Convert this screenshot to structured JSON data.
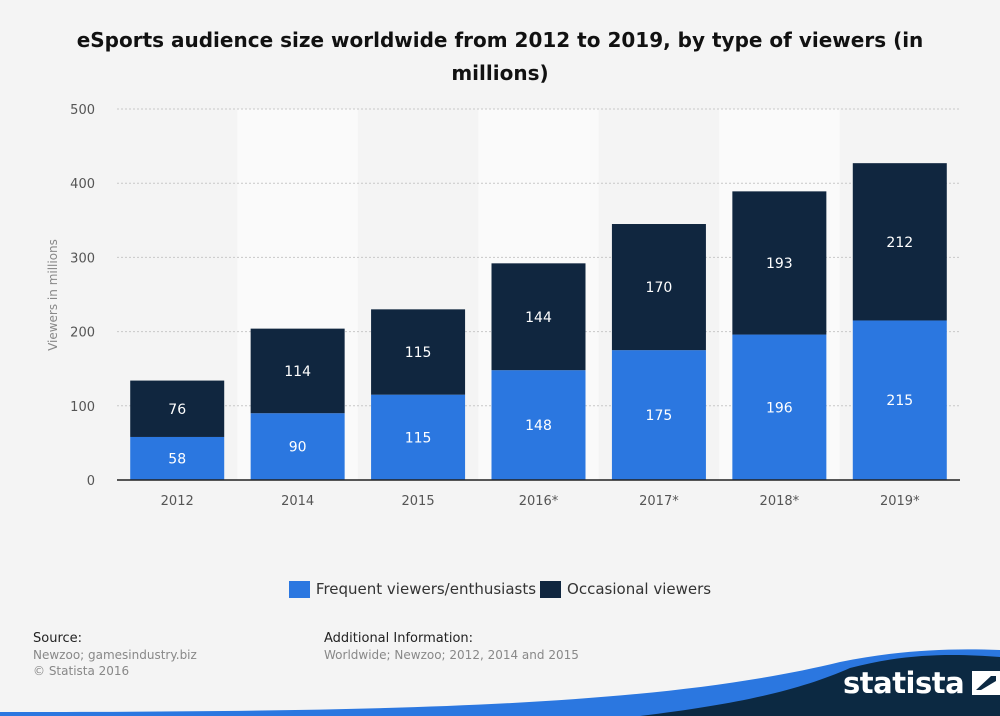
{
  "chart_data": {
    "type": "bar",
    "stacked": true,
    "title": "eSports audience size worldwide from 2012 to 2019, by type of viewers (in millions)",
    "ylabel": "Viewers in millions",
    "xlabel": "",
    "ylim": [
      0,
      500
    ],
    "yticks": [
      0,
      100,
      200,
      300,
      400,
      500
    ],
    "grid": true,
    "legend_position": "bottom",
    "categories": [
      "2012",
      "2014",
      "2015",
      "2016*",
      "2017*",
      "2018*",
      "2019*"
    ],
    "series": [
      {
        "name": "Frequent viewers/enthusiasts",
        "color": "#2b77e0",
        "values": [
          58,
          90,
          115,
          148,
          175,
          196,
          215
        ]
      },
      {
        "name": "Occasional viewers",
        "color": "#10263f",
        "values": [
          76,
          114,
          115,
          144,
          170,
          193,
          212
        ]
      }
    ]
  },
  "footer": {
    "source_heading": "Source:",
    "source_lines": [
      "Newzoo; gamesindustry.biz",
      "© Statista 2016"
    ],
    "info_heading": "Additional Information:",
    "info_text": "Worldwide; Newzoo; 2012, 2014 and 2015"
  },
  "brand": {
    "name": "statista",
    "icon": "statista-logo-icon"
  },
  "colors": {
    "background": "#f4f4f4",
    "band": "#fafafa",
    "grid": "#c8c8c8",
    "brand_dark": "#0c2942",
    "brand_blue": "#2b77e0"
  }
}
